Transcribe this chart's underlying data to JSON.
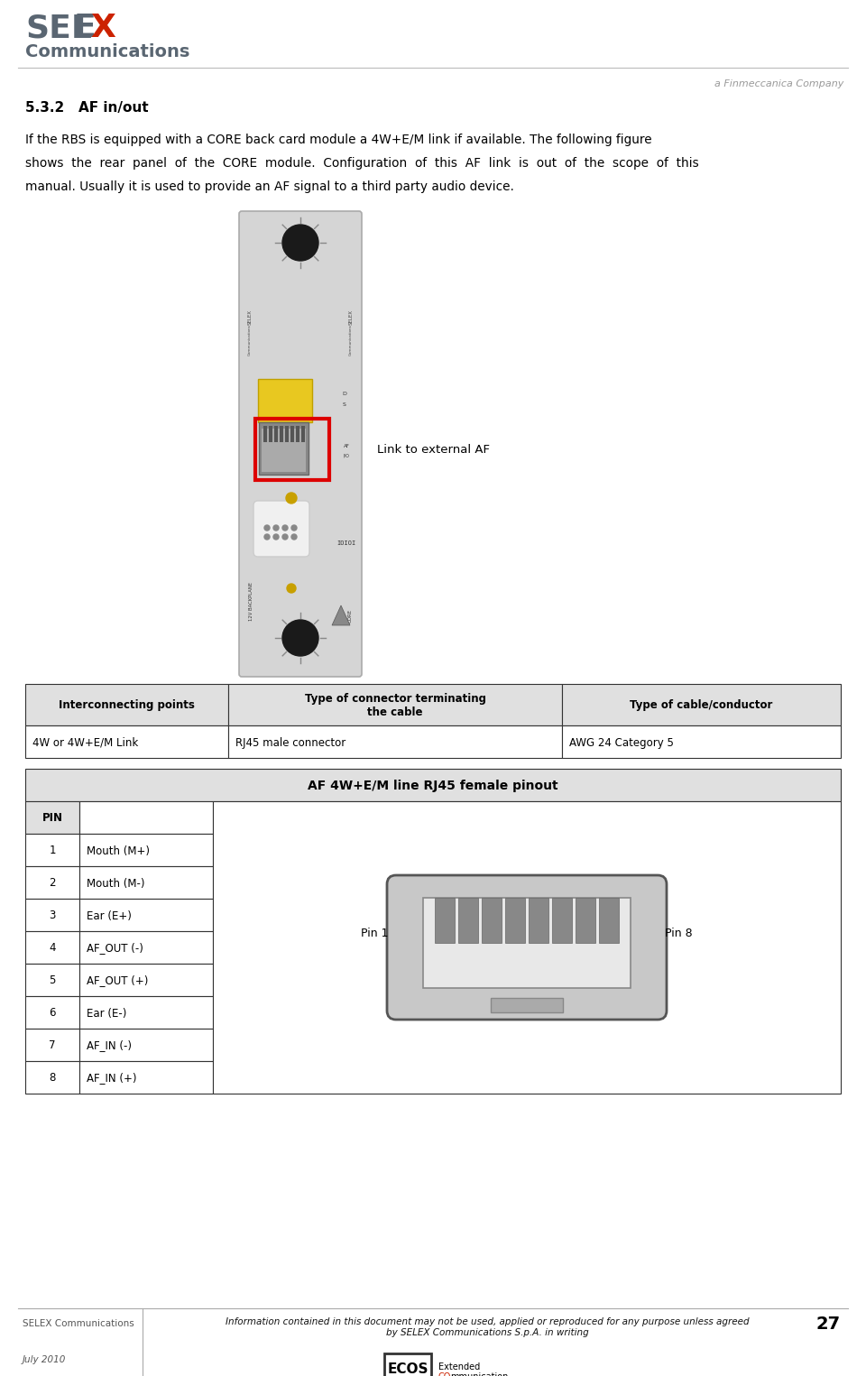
{
  "page_width": 9.6,
  "page_height": 15.25,
  "bg_color": "#ffffff",
  "selex_color": "#5a6672",
  "selex_x_color": "#cc2200",
  "finmeccanica_text": "a Finmeccanica Company",
  "finmeccanica_color": "#999999",
  "section_title": "5.3.2   AF in/out",
  "body_text_line1": "If the RBS is equipped with a CORE back card module a 4W+E/M link if available. The following figure",
  "body_text_line2": "shows  the  rear  panel  of  the  CORE  module.  Configuration  of  this  AF  link  is  out  of  the  scope  of  this",
  "body_text_line3": "manual. Usually it is used to provide an AF signal to a third party audio device.",
  "link_label": "Link to external AF",
  "table1_headers": [
    "Interconnecting points",
    "Type of connector terminating\nthe cable",
    "Type of cable/conductor"
  ],
  "table1_row": [
    "4W or 4W+E/M Link",
    "RJ45 male connector",
    "AWG 24 Category 5"
  ],
  "table2_title": "AF 4W+E/M line RJ45 female pinout",
  "table2_pins": [
    [
      "PIN",
      ""
    ],
    [
      "1",
      "Mouth (M+)"
    ],
    [
      "2",
      "Mouth (M-)"
    ],
    [
      "3",
      "Ear (E+)"
    ],
    [
      "4",
      "AF_OUT (-)"
    ],
    [
      "5",
      "AF_OUT (+)"
    ],
    [
      "6",
      "Ear (E-)"
    ],
    [
      "7",
      "AF_IN (-)"
    ],
    [
      "8",
      "AF_IN (+)"
    ]
  ],
  "footer_left1": "SELEX Communications",
  "footer_left2": "July 2010",
  "footer_center": "Information contained in this document may not be used, applied or reproduced for any purpose unless agreed\nby SELEX Communications S.p.A. in writing",
  "footer_page": "27"
}
